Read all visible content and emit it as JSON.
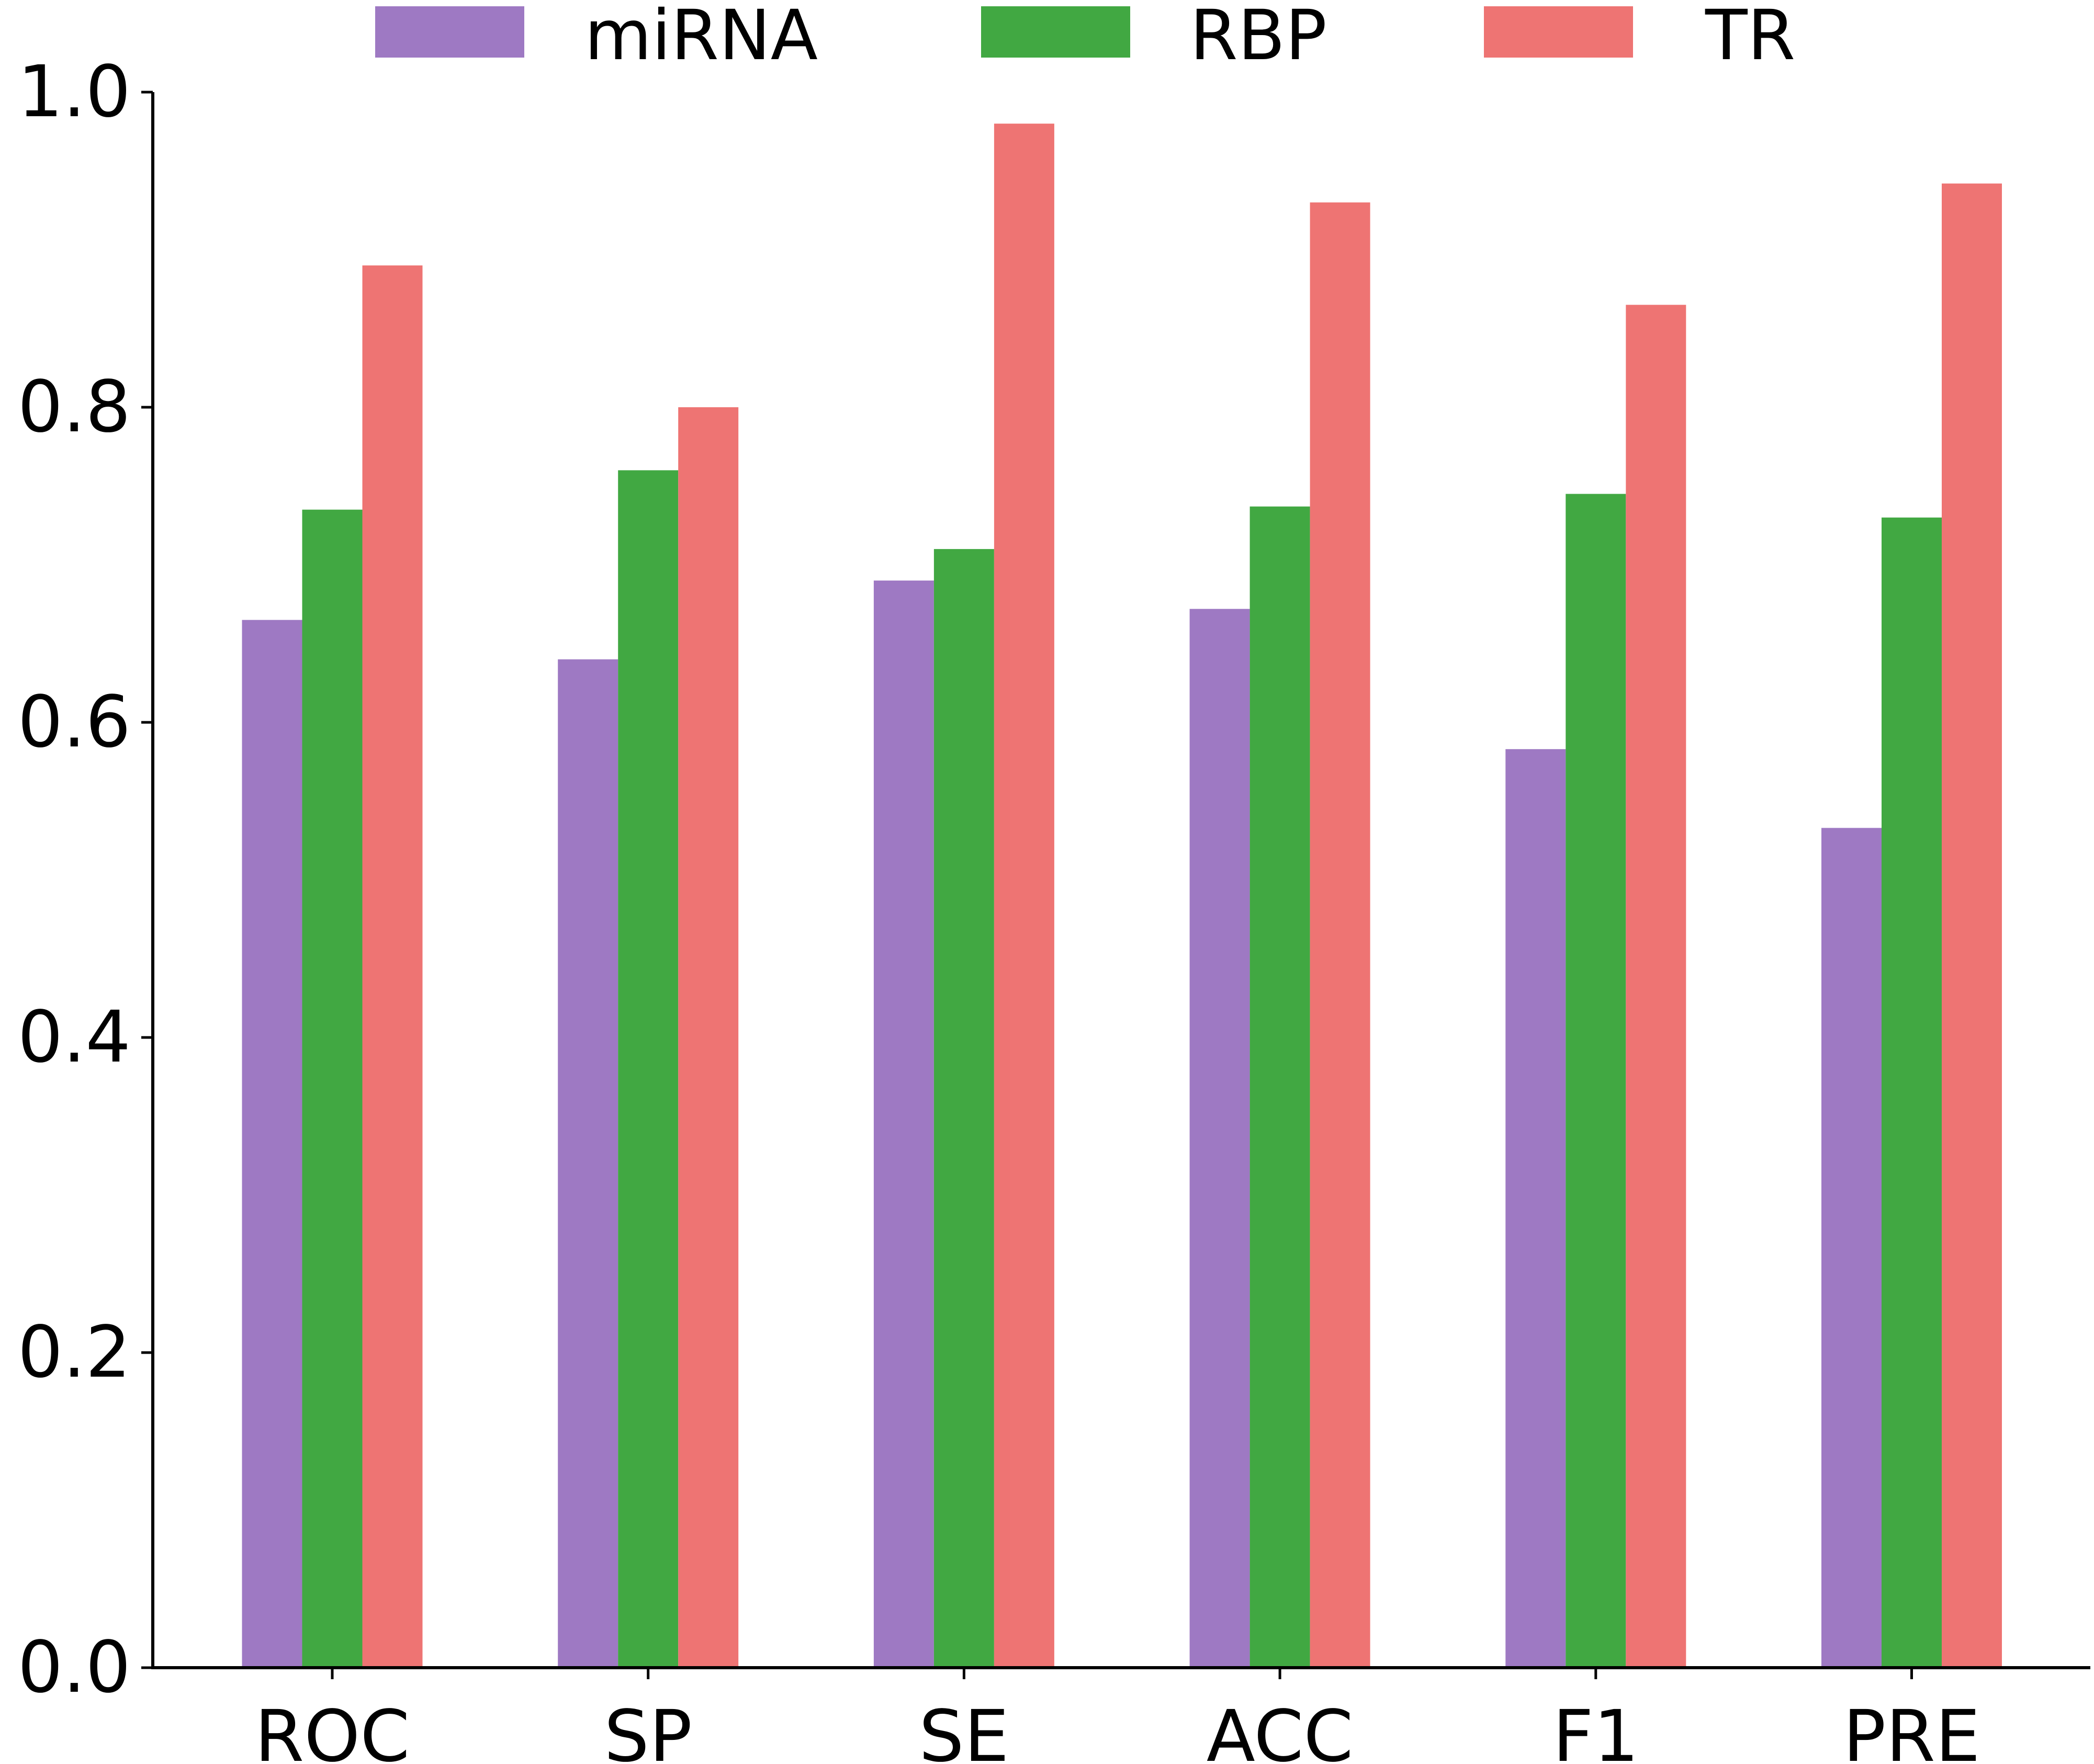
{
  "chart_data": {
    "type": "bar",
    "title": "",
    "xlabel": "",
    "ylabel": "",
    "categories": [
      "ROC",
      "SP",
      "SE",
      "ACC",
      "F1",
      "PRE"
    ],
    "series": [
      {
        "name": "miRNA",
        "color": "#9e79c3",
        "values": [
          0.665,
          0.64,
          0.69,
          0.672,
          0.583,
          0.533
        ]
      },
      {
        "name": "RBP",
        "color": "#41a842",
        "values": [
          0.735,
          0.76,
          0.71,
          0.737,
          0.745,
          0.73
        ]
      },
      {
        "name": "TR",
        "color": "#ee7473",
        "values": [
          0.89,
          0.8,
          0.98,
          0.93,
          0.865,
          0.942
        ]
      }
    ],
    "ylim": [
      0,
      1.0
    ],
    "yticks": [
      0.0,
      0.2,
      0.4,
      0.6,
      0.8,
      1.0
    ],
    "ytick_labels": [
      "0.0",
      "0.2",
      "0.4",
      "0.6",
      "0.8",
      "1.0"
    ],
    "grid": false,
    "legend_position": "top-center"
  }
}
